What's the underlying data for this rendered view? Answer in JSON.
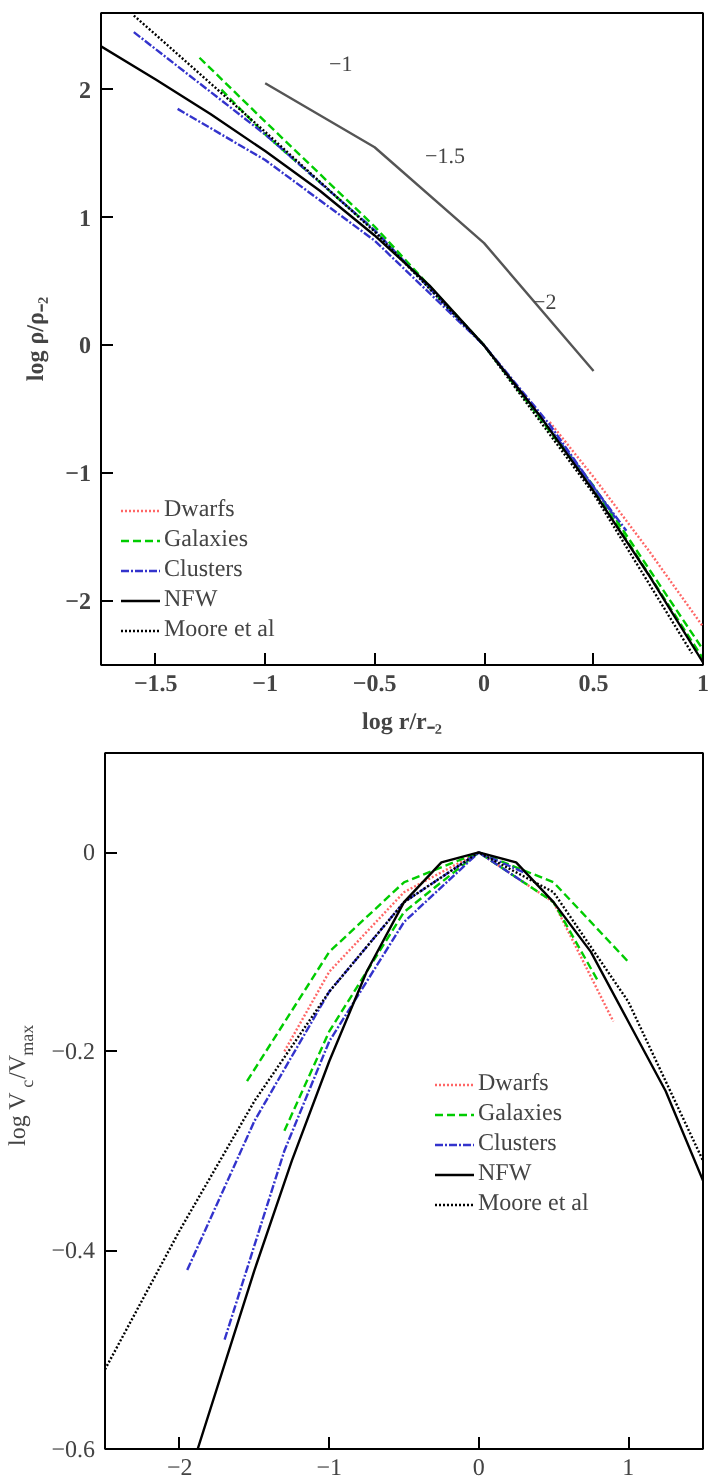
{
  "chart_data": [
    {
      "type": "line",
      "xlabel": "log r/r₋₂",
      "ylabel": "log ρ/ρ₋₂",
      "xlim": [
        -1.75,
        1
      ],
      "ylim": [
        -2.5,
        2.6
      ],
      "xticks": [
        {
          "value": -1.5,
          "label": "−1.5"
        },
        {
          "value": -1,
          "label": "−1"
        },
        {
          "value": -0.5,
          "label": "−0.5"
        },
        0,
        0.5,
        1
      ],
      "yticks": [
        {
          "value": -2,
          "label": "−2"
        },
        {
          "value": -1,
          "label": "−1"
        },
        0,
        1,
        2
      ],
      "grid": false,
      "legend": "bottom left",
      "series": [
        {
          "name": "Dwarfs",
          "color": "#ff6666",
          "line_style": "dotted",
          "x": [
            0.3,
            0.5,
            0.75,
            1
          ],
          "values": [
            -0.6,
            -1.03,
            -1.6,
            -2.2
          ]
        },
        {
          "name": "Galaxies",
          "color": "#00cc00",
          "line_style": "dashed",
          "x": [
            -1.3,
            -1,
            -0.5,
            0,
            0.5,
            1
          ],
          "values": [
            2.25,
            1.75,
            0.93,
            0,
            -1.1,
            -2.38
          ]
        },
        {
          "color": "#00cc00",
          "line_style": "dashed",
          "x": [
            -1.2,
            -1,
            -0.5,
            0,
            0.5,
            1
          ],
          "values": [
            2.0,
            1.65,
            0.9,
            0,
            -1.12,
            -2.45
          ]
        },
        {
          "name": "Clusters",
          "color": "#3333cc",
          "line_style": "dashdot",
          "x": [
            -1.6,
            -1,
            -0.5,
            0,
            0.3,
            0.65
          ],
          "values": [
            2.45,
            1.65,
            0.9,
            0,
            -0.65,
            -1.45
          ]
        },
        {
          "color": "#3333cc",
          "line_style": "dashdot",
          "x": [
            -1.4,
            -1,
            -0.5,
            0,
            0.3,
            0.6
          ],
          "values": [
            1.85,
            1.45,
            0.82,
            0,
            -0.62,
            -1.35
          ]
        },
        {
          "name": "NFW",
          "color": "#000000",
          "line_style": "solid",
          "x": [
            -1.75,
            -1.5,
            -1.25,
            -1,
            -0.75,
            -0.5,
            -0.25,
            0,
            0.25,
            0.5,
            0.75,
            1
          ],
          "values": [
            2.34,
            2.08,
            1.81,
            1.52,
            1.21,
            0.86,
            0.47,
            0,
            -0.54,
            -1.14,
            -1.79,
            -2.48
          ]
        },
        {
          "name": "Moore et al",
          "color": "#000000",
          "line_style": "dotted",
          "x": [
            -1.6,
            -1.5,
            -1,
            -0.5,
            0,
            0.5,
            0.95
          ],
          "values": [
            2.58,
            2.43,
            1.67,
            0.89,
            0,
            -1.16,
            -2.41
          ]
        },
        {
          "color": "#555555",
          "line_style": "solid",
          "x": [
            -1,
            -0.5,
            0,
            0.5
          ],
          "values": [
            2.05,
            1.55,
            0.8,
            -0.2
          ]
        }
      ],
      "annotations": [
        "−1",
        "−1.5",
        "−2"
      ]
    },
    {
      "type": "line",
      "ylabel": "log V$_{c}$/V$_{max}$",
      "xlim": [
        -2.5,
        1.5
      ],
      "ylim": [
        -0.6,
        0.1
      ],
      "xticks": [
        {
          "value": -2,
          "label": "−2"
        },
        {
          "value": -1,
          "label": "−1"
        },
        0,
        1
      ],
      "yticks": [
        {
          "value": -0.6,
          "label": "−0.6"
        },
        {
          "value": -0.4,
          "label": "−0.4"
        },
        {
          "value": -0.2,
          "label": "−0.2"
        },
        0
      ],
      "grid": false,
      "legend": "right",
      "series": [
        {
          "name": "Dwarfs",
          "color": "#ff6666",
          "line_style": "dotted",
          "x": [
            -1.3,
            -1,
            -0.5,
            0,
            0.5,
            0.9
          ],
          "values": [
            -0.2,
            -0.12,
            -0.04,
            0,
            -0.05,
            -0.17
          ]
        },
        {
          "name": "Galaxies",
          "color": "#00cc00",
          "line_style": "dashed",
          "x": [
            -1.55,
            -1,
            -0.5,
            0,
            0.5,
            1
          ],
          "values": [
            -0.23,
            -0.1,
            -0.03,
            0,
            -0.03,
            -0.11
          ]
        },
        {
          "color": "#00cc00",
          "line_style": "dashed",
          "x": [
            -1.3,
            -1,
            -0.5,
            0,
            0.5,
            0.8
          ],
          "values": [
            -0.28,
            -0.18,
            -0.06,
            0,
            -0.05,
            -0.13
          ]
        },
        {
          "name": "Clusters",
          "color": "#3333cc",
          "line_style": "dashdot",
          "x": [
            -1.95,
            -1.5,
            -1,
            -0.5,
            0,
            0.3
          ],
          "values": [
            -0.42,
            -0.27,
            -0.14,
            -0.05,
            0,
            -0.02
          ]
        },
        {
          "color": "#3333cc",
          "line_style": "dashdot",
          "x": [
            -1.7,
            -1.3,
            -1,
            -0.5,
            0,
            0.3
          ],
          "values": [
            -0.49,
            -0.3,
            -0.19,
            -0.07,
            0,
            -0.03
          ]
        },
        {
          "name": "NFW",
          "color": "#000000",
          "line_style": "solid",
          "x": [
            -1.88,
            -1.5,
            -1.25,
            -1,
            -0.75,
            -0.5,
            -0.25,
            0,
            0.25,
            0.5,
            0.75,
            1,
            1.25,
            1.5
          ],
          "values": [
            -0.6,
            -0.42,
            -0.31,
            -0.21,
            -0.12,
            -0.05,
            -0.01,
            0,
            -0.01,
            -0.05,
            -0.1,
            -0.17,
            -0.24,
            -0.33
          ]
        },
        {
          "name": "Moore et al",
          "color": "#000000",
          "line_style": "dotted",
          "x": [
            -2.5,
            -2,
            -1.5,
            -1,
            -0.5,
            0,
            0.5,
            1,
            1.5
          ],
          "values": [
            -0.52,
            -0.38,
            -0.25,
            -0.14,
            -0.05,
            0,
            -0.04,
            -0.15,
            -0.31
          ]
        }
      ]
    }
  ]
}
